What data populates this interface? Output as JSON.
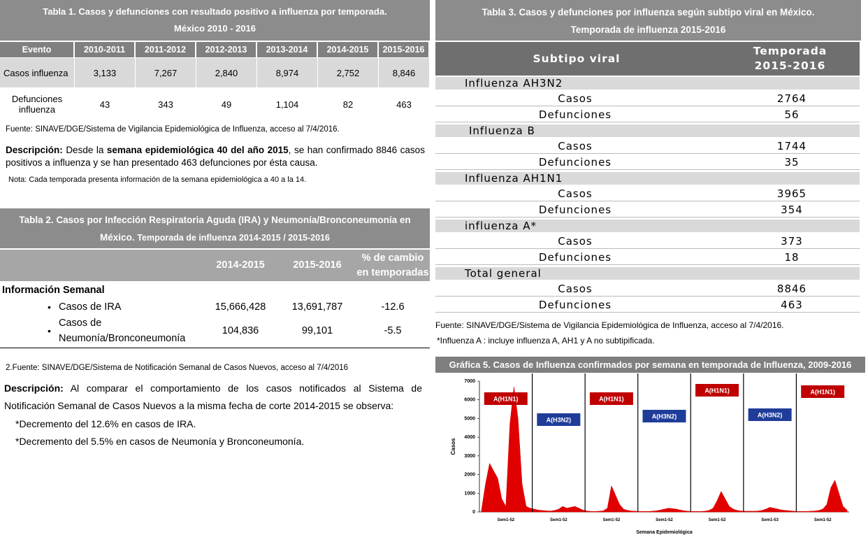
{
  "table1": {
    "title_line1": "Tabla 1. Casos y defunciones con resultado positivo a influenza por temporada.",
    "title_line2": "México 2010 - 2016",
    "headers": [
      "Evento",
      "2010-2011",
      "2011-2012",
      "2012-2013",
      "2013-2014",
      "2014-2015",
      "2015-2016"
    ],
    "rows": [
      [
        "Casos influenza",
        "3,133",
        "7,267",
        "2,840",
        "8,974",
        "2,752",
        "8,846"
      ],
      [
        "Defunciones influenza",
        "43",
        "343",
        "49",
        "1,104",
        "82",
        "463"
      ]
    ],
    "source": "Fuente: SINAVE/DGE/Sistema de Vigilancia Epidemiológica de Influenza, acceso al 7/4/2016.",
    "description_label": "Descripción:",
    "description_text1": "Desde la",
    "description_bold": "semana epidemiológica 40 del año 2015",
    "description_text2": ", se han confirmado 8846 casos positivos a influenza y  se han presentado 463 defunciones por ésta causa.",
    "note": "Nota: Cada temporada presenta información de la semana epidemiológica  a 40 a la 14."
  },
  "table2": {
    "title_line1": "Tabla 2. Casos por Infección Respiratoria Aguda (IRA) y Neumonía/Bronconeumonía en",
    "title_line2a": "México.",
    "title_line2b": "Temporada de influenza 2014-2015 / 2015-2016",
    "headers": [
      "2014-2015",
      "2015-2016",
      "% de cambio en temporadas"
    ],
    "section": "Información Semanal",
    "rows": [
      [
        "Casos de IRA",
        "15,666,428",
        "13,691,787",
        "-12.6"
      ],
      [
        "Casos de Neumonía/Bronconeumonía",
        "104,836",
        "99,101",
        "-5.5"
      ]
    ],
    "source": "2.Fuente: SINAVE/DGE/Sistema de Notificación Semanal de Casos Nuevos, acceso al 7/4/2016",
    "description_label": "Descripción:",
    "description_text": "Al comparar el comportamiento de los casos notificados al Sistema de Notificación Semanal de Casos Nuevos a la misma fecha de corte 2014-2015 se observa:",
    "bullets": [
      "*Decremento del 12.6% en casos de IRA.",
      "*Decremento del 5.5% en casos de Neumonía y Bronconeumonía."
    ]
  },
  "table3": {
    "title_line1": "Tabla 3. Casos y defunciones por influenza según subtipo viral en México.",
    "title_line2": "Temporada de  influenza 2015-2016",
    "headers": [
      "Subtipo viral",
      "Temporada 2015-2016"
    ],
    "groups": [
      {
        "name": "Influenza AH3N2",
        "rows": [
          [
            "Casos",
            "2764"
          ],
          [
            "Defunciones",
            "56"
          ]
        ]
      },
      {
        "name": "Influenza B",
        "rows": [
          [
            "Casos",
            "1744"
          ],
          [
            "Defunciones",
            "35"
          ]
        ]
      },
      {
        "name": "Influenza AH1N1",
        "rows": [
          [
            "Casos",
            "3965"
          ],
          [
            "Defunciones",
            "354"
          ]
        ]
      },
      {
        "name": "influenza A*",
        "rows": [
          [
            "Casos",
            "373"
          ],
          [
            "Defunciones",
            "18"
          ]
        ]
      },
      {
        "name": "Total general",
        "rows": [
          [
            "Casos",
            "8846"
          ],
          [
            "Defunciones",
            "463"
          ]
        ]
      }
    ],
    "source": "Fuente: SINAVE/DGE/Sistema de Vigilancia Epidemiológica de Influenza, acceso al 7/4/2016.",
    "note": "*Influenza A : incluye influenza A, AH1 y A no subtipificada."
  },
  "chart_data": {
    "type": "area",
    "title": "Gráfica 5. Casos de Influenza confirmados por semana en temporada de Influenza, 2009-2016",
    "ylabel": "Casos",
    "xlabel": "Semana Epidemiológica",
    "color": "#e00000",
    "ylim": [
      0,
      7000
    ],
    "yticks": [
      0,
      1000,
      2000,
      3000,
      4000,
      5000,
      6000,
      7000
    ],
    "season_labels": [
      "Sem1-52",
      "Sem1-52",
      "Sem1-52",
      "Sem1-52",
      "Sem1-52",
      "Sem1-53",
      "Sem1-52"
    ],
    "annotations": [
      {
        "text": "A(H1N1)",
        "color": "#c00000"
      },
      {
        "text": "A(H3N2)",
        "color": "#1f3c99"
      },
      {
        "text": "A(H1N1)",
        "color": "#c00000"
      },
      {
        "text": "A(H3N2)",
        "color": "#1f3c99"
      },
      {
        "text": "A(H1N1)",
        "color": "#c00000"
      },
      {
        "text": "A(H3N2)",
        "color": "#1f3c99"
      },
      {
        "text": "A(H1N1)",
        "color": "#c00000"
      }
    ],
    "values": [
      100,
      1500,
      2600,
      2200,
      1800,
      700,
      300,
      4700,
      6700,
      5000,
      1500,
      300,
      200,
      150,
      100,
      80,
      60,
      50,
      80,
      150,
      300,
      200,
      250,
      300,
      200,
      100,
      50,
      30,
      30,
      40,
      60,
      200,
      1400,
      900,
      400,
      150,
      80,
      50,
      40,
      30,
      30,
      30,
      40,
      60,
      100,
      150,
      200,
      180,
      150,
      100,
      60,
      40,
      30,
      30,
      30,
      40,
      80,
      200,
      600,
      1100,
      700,
      300,
      150,
      80,
      50,
      40,
      40,
      40,
      50,
      80,
      150,
      250,
      200,
      150,
      100,
      80,
      60,
      40,
      30,
      30,
      30,
      40,
      50,
      80,
      150,
      400,
      1300,
      1700,
      1000,
      300,
      100
    ]
  }
}
